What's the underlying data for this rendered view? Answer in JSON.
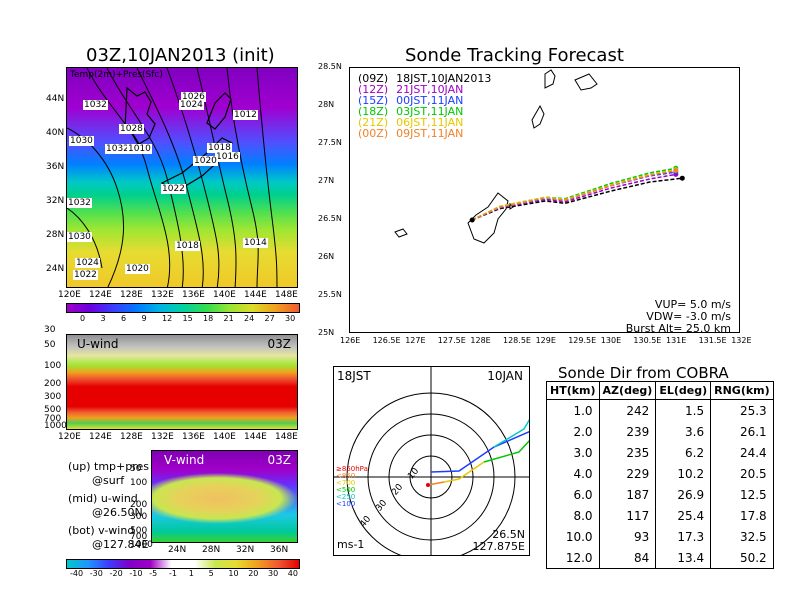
{
  "left": {
    "title": "03Z,10JAN2013 (init)",
    "map_label": "Temp(2m)+Pres(Sfc)",
    "map_x_ticks": [
      "120E",
      "124E",
      "128E",
      "132E",
      "136E",
      "140E",
      "144E",
      "148E"
    ],
    "map_y_ticks": [
      "44N",
      "40N",
      "36N",
      "32N",
      "28N",
      "24N"
    ],
    "isobar_labels": [
      "1026",
      "1024",
      "1032",
      "1028",
      "1030",
      "1032",
      "1010",
      "1018",
      "1016",
      "1020",
      "1012",
      "1022",
      "1032",
      "1030",
      "1018",
      "1014",
      "1024",
      "1022",
      "1020"
    ],
    "temp_scale": [
      "0",
      "3",
      "6",
      "9",
      "12",
      "15",
      "18",
      "21",
      "24",
      "27",
      "30"
    ],
    "uwind": {
      "label": "U-wind",
      "time": "03Z",
      "y_ticks": [
        "30",
        "50",
        "100",
        "200",
        "300",
        "500",
        "700",
        "1000"
      ],
      "x_ticks": [
        "120E",
        "124E",
        "128E",
        "132E",
        "136E",
        "140E",
        "144E",
        "148E"
      ]
    },
    "vwind": {
      "label": "V-wind",
      "time": "03Z",
      "y_ticks": [
        "50",
        "100",
        "200",
        "300",
        "500",
        "700",
        "1000"
      ],
      "x_ticks": [
        "24N",
        "28N",
        "32N",
        "36N"
      ]
    },
    "legend_lines": [
      "(up) tmp+pres",
      "@surf",
      "(mid) u-wind",
      "@26.50N",
      "(bot) v-wind",
      "@127.84E"
    ],
    "wind_scale": [
      "-40",
      "-30",
      "-20",
      "-10",
      "-5",
      "-1",
      "1",
      "5",
      "10",
      "20",
      "30",
      "40"
    ]
  },
  "track": {
    "title": "Sonde Tracking Forecast",
    "x_ticks": [
      "126E",
      "126.5E",
      "127E",
      "127.5E",
      "128E",
      "128.5E",
      "129E",
      "129.5E",
      "130E",
      "130.5E",
      "131E",
      "131.5E",
      "132E"
    ],
    "y_ticks": [
      "28.5N",
      "28N",
      "27.5N",
      "27N",
      "26.5N",
      "26N",
      "25.5N",
      "25N"
    ],
    "legend": [
      {
        "code": "(09Z)",
        "time": "18JST,10JAN2013",
        "color": "#000000"
      },
      {
        "code": "(12Z)",
        "time": "21JST,10JAN",
        "color": "#a000c8"
      },
      {
        "code": "(15Z)",
        "time": "00JST,11JAN",
        "color": "#1e3cff"
      },
      {
        "code": "(18Z)",
        "time": "03JST,11JAN",
        "color": "#00c800"
      },
      {
        "code": "(21Z)",
        "time": "06JST,11JAN",
        "color": "#e6c800"
      },
      {
        "code": "(00Z)",
        "time": "09JST,11JAN",
        "color": "#f08228"
      }
    ],
    "params": [
      "VUP= 5.0 m/s",
      "VDW= -3.0 m/s",
      "Burst Alt= 25.0 km"
    ]
  },
  "polar": {
    "time_left": "18JST",
    "date_right": "10JAN",
    "ring_labels": [
      "10",
      "20",
      "30",
      "40"
    ],
    "pressure_legend": [
      {
        "label": "≥850hPa",
        "color": "#e60000"
      },
      {
        "label": "<850",
        "color": "#f08228"
      },
      {
        "label": "<700",
        "color": "#e6c800"
      },
      {
        "label": "<500",
        "color": "#00c800"
      },
      {
        "label": "<250",
        "color": "#00c8c8"
      },
      {
        "label": "<100",
        "color": "#1e3cff"
      }
    ],
    "unit": "ms-1",
    "lat": "26.5N",
    "lon": "127.875E"
  },
  "sonde": {
    "title": "Sonde Dir from COBRA",
    "headers": [
      "HT(km)",
      "AZ(deg)",
      "EL(deg)",
      "RNG(km)"
    ],
    "rows": [
      [
        "1.0",
        "242",
        "1.5",
        "25.3"
      ],
      [
        "2.0",
        "239",
        "3.6",
        "26.1"
      ],
      [
        "3.0",
        "235",
        "6.2",
        "24.4"
      ],
      [
        "4.0",
        "229",
        "10.2",
        "20.5"
      ],
      [
        "6.0",
        "187",
        "26.9",
        "12.5"
      ],
      [
        "8.0",
        "117",
        "25.4",
        "17.8"
      ],
      [
        "10.0",
        "93",
        "17.3",
        "32.5"
      ],
      [
        "12.0",
        "84",
        "13.4",
        "50.2"
      ]
    ]
  },
  "chart_data": [
    {
      "type": "line",
      "title": "Sonde Tracking Forecast",
      "xlim": [
        126,
        132
      ],
      "ylim": [
        25,
        28.5
      ],
      "series": [
        {
          "name": "(09Z) 18JST,10JAN2013",
          "x": [
            127.875,
            128.3,
            129.0,
            129.3,
            130.0,
            130.6,
            131.1
          ],
          "y": [
            26.5,
            26.65,
            26.75,
            26.72,
            26.88,
            27.0,
            27.05
          ]
        },
        {
          "name": "(12Z) 21JST,10JAN",
          "x": [
            127.875,
            128.3,
            129.0,
            129.3,
            130.0,
            130.6,
            131.0
          ],
          "y": [
            26.5,
            26.66,
            26.77,
            26.74,
            26.92,
            27.04,
            27.1
          ]
        },
        {
          "name": "(15Z) 00JST,11JAN",
          "x": [
            127.875,
            128.3,
            129.0,
            129.3,
            130.0,
            130.6,
            131.0
          ],
          "y": [
            26.5,
            26.67,
            26.78,
            26.76,
            26.95,
            27.08,
            27.13
          ]
        },
        {
          "name": "(18Z) 03JST,11JAN",
          "x": [
            127.875,
            128.3,
            129.0,
            129.3,
            130.0,
            130.6,
            131.0
          ],
          "y": [
            26.5,
            26.68,
            26.8,
            26.78,
            26.98,
            27.12,
            27.18
          ]
        },
        {
          "name": "(21Z) 06JST,11JAN",
          "x": [
            127.875,
            128.3,
            129.0,
            129.3,
            130.0,
            130.6,
            131.0
          ],
          "y": [
            26.5,
            26.68,
            26.8,
            26.77,
            26.96,
            27.1,
            27.16
          ]
        },
        {
          "name": "(00Z) 09JST,11JAN",
          "x": [
            127.875,
            128.3,
            129.0,
            129.3,
            130.0,
            130.6,
            131.0
          ],
          "y": [
            26.5,
            26.67,
            26.79,
            26.76,
            26.95,
            27.09,
            27.15
          ]
        }
      ]
    },
    {
      "type": "table",
      "title": "Sonde Dir from COBRA",
      "columns": [
        "HT(km)",
        "AZ(deg)",
        "EL(deg)",
        "RNG(km)"
      ],
      "rows": [
        [
          1.0,
          242,
          1.5,
          25.3
        ],
        [
          2.0,
          239,
          3.6,
          26.1
        ],
        [
          3.0,
          235,
          6.2,
          24.4
        ],
        [
          4.0,
          229,
          10.2,
          20.5
        ],
        [
          6.0,
          187,
          26.9,
          12.5
        ],
        [
          8.0,
          117,
          25.4,
          17.8
        ],
        [
          10.0,
          93,
          17.3,
          32.5
        ],
        [
          12.0,
          84,
          13.4,
          50.2
        ]
      ]
    }
  ]
}
